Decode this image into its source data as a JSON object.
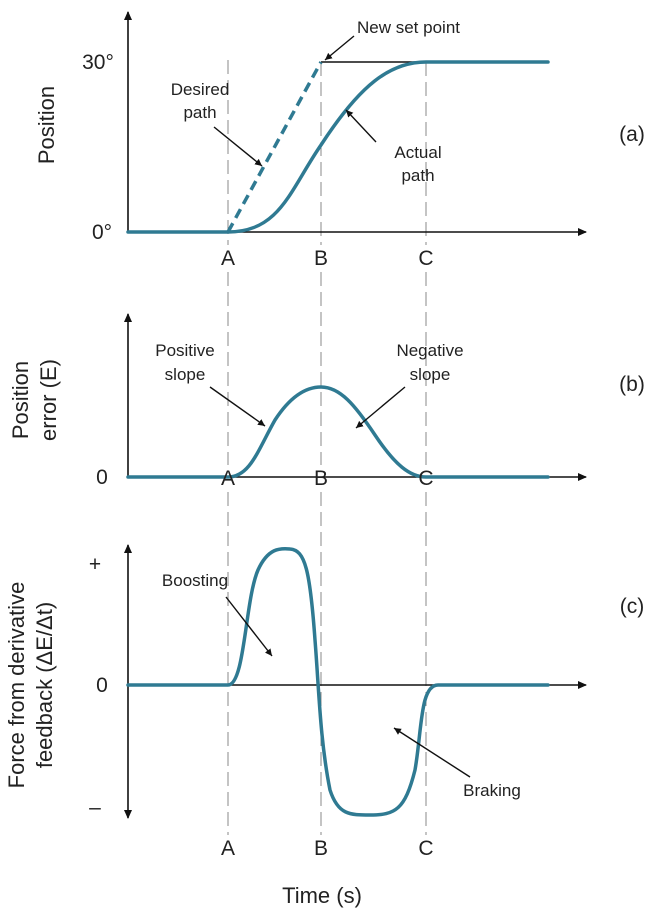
{
  "panels": {
    "a": {
      "tag": "(a)",
      "ylabel": "Position",
      "y_top": "30°",
      "y_zero": "0°",
      "annotations": {
        "new_set_point": "New set point",
        "desired_1": "Desired",
        "desired_2": "path",
        "actual_1": "Actual",
        "actual_2": "path"
      }
    },
    "b": {
      "tag": "(b)",
      "ylabel_1": "Position",
      "ylabel_2": "error (E)",
      "y_zero": "0",
      "annotations": {
        "pos_1": "Positive",
        "pos_2": "slope",
        "neg_1": "Negative",
        "neg_2": "slope"
      }
    },
    "c": {
      "tag": "(c)",
      "ylabel_1": "Force from derivative",
      "ylabel_2": "feedback (ΔE/Δt)",
      "y_plus": "+",
      "y_zero": "0",
      "y_minus": "–",
      "annotations": {
        "boosting": "Boosting",
        "braking": "Braking"
      }
    }
  },
  "x_ticks": [
    "A",
    "B",
    "C"
  ],
  "xlabel": "Time (s)",
  "colors": {
    "curve": "#2f7a92",
    "axis": "#111111",
    "guide": "#888888"
  }
}
